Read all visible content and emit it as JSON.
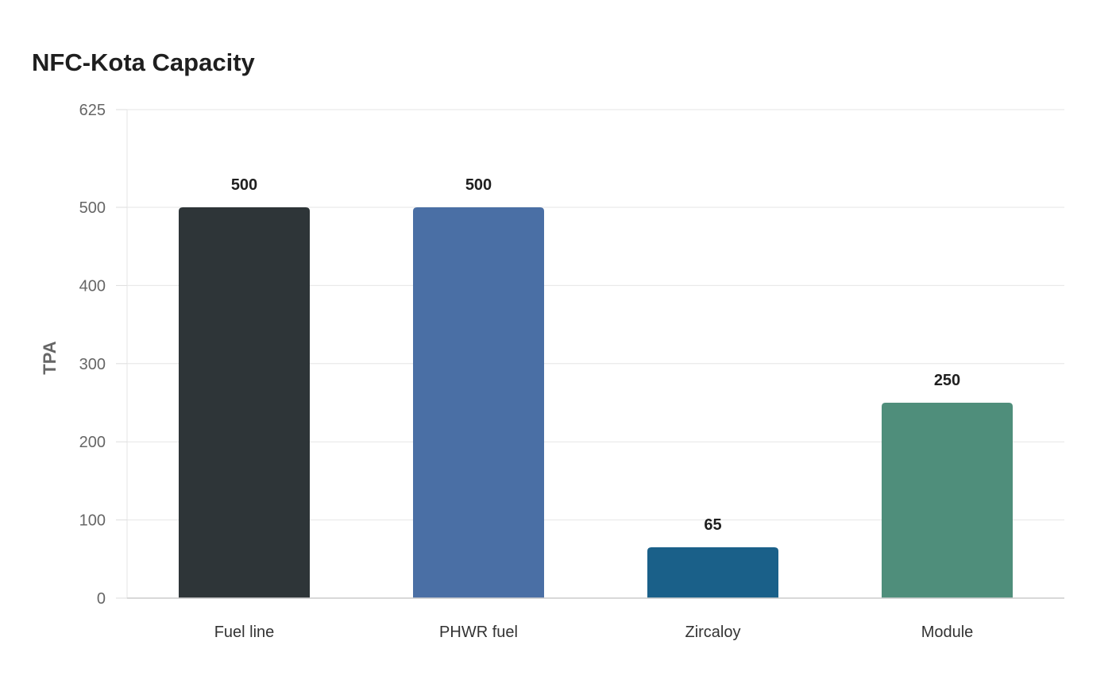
{
  "chart_data": {
    "type": "bar",
    "title": "NFC-Kota Capacity",
    "xlabel": "",
    "ylabel": "TPA",
    "categories": [
      "Fuel line",
      "PHWR fuel",
      "Zircaloy",
      "Module"
    ],
    "values": [
      500,
      500,
      65,
      250
    ],
    "value_labels": [
      "500",
      "500",
      "65",
      "250"
    ],
    "colors": [
      "#2e3538",
      "#4a6fa5",
      "#1a6089",
      "#4f8e7b"
    ],
    "ylim": [
      0,
      625
    ],
    "yticks": [
      0,
      100,
      200,
      300,
      400,
      500,
      625
    ],
    "ytick_labels": [
      "0",
      "100",
      "200",
      "300",
      "400",
      "500",
      "625"
    ],
    "grid": true,
    "legend": "none"
  }
}
